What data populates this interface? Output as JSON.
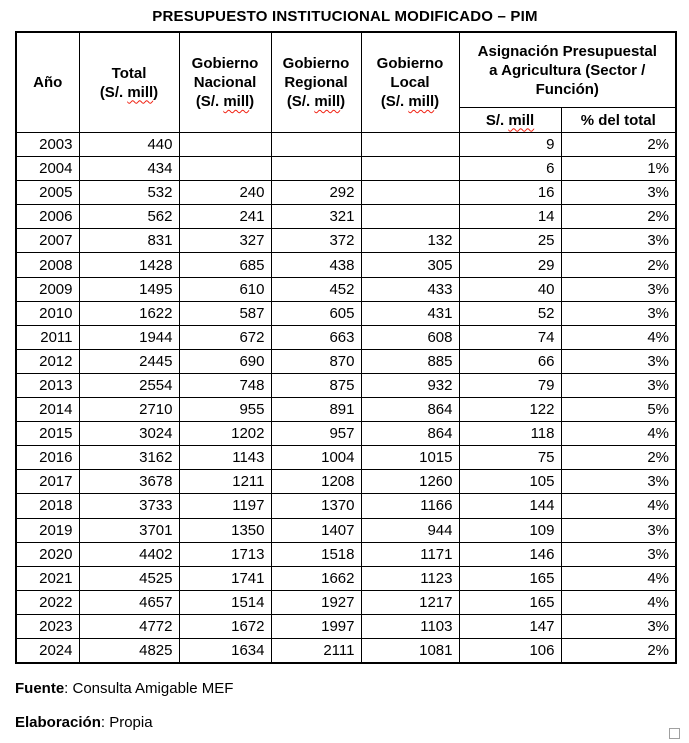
{
  "title": "PRESUPUESTO INSTITUCIONAL MODIFICADO – PIM",
  "colors": {
    "text": "#000000",
    "border": "#000000",
    "background": "#ffffff",
    "spellcheck_underline": "#f02011"
  },
  "table": {
    "headers": {
      "ano": "Año",
      "total_name": "Total",
      "total_unit": "(S/. mill)",
      "nacional_name": "Gobierno\nNacional",
      "nacional_unit": "(S/. mill)",
      "regional_name": "Gobierno\nRegional",
      "regional_unit": "(S/. mill)",
      "local_name": "Gobierno\nLocal",
      "local_unit": "(S/. mill)",
      "asignacion": "Asignación Presupuestal\na Agricultura (Sector /\nFunción)",
      "sub_mill": "S/. mill",
      "sub_pct": "% del total"
    },
    "column_keys": [
      "year",
      "total",
      "gobierno_nacional",
      "gobierno_regional",
      "gobierno_local",
      "agricultura_mill",
      "agricultura_pct"
    ],
    "rows": [
      [
        "2003",
        "440",
        "",
        "",
        "",
        "9",
        "2%"
      ],
      [
        "2004",
        "434",
        "",
        "",
        "",
        "6",
        "1%"
      ],
      [
        "2005",
        "532",
        "240",
        "292",
        "",
        "16",
        "3%"
      ],
      [
        "2006",
        "562",
        "241",
        "321",
        "",
        "14",
        "2%"
      ],
      [
        "2007",
        "831",
        "327",
        "372",
        "132",
        "25",
        "3%"
      ],
      [
        "2008",
        "1428",
        "685",
        "438",
        "305",
        "29",
        "2%"
      ],
      [
        "2009",
        "1495",
        "610",
        "452",
        "433",
        "40",
        "3%"
      ],
      [
        "2010",
        "1622",
        "587",
        "605",
        "431",
        "52",
        "3%"
      ],
      [
        "2011",
        "1944",
        "672",
        "663",
        "608",
        "74",
        "4%"
      ],
      [
        "2012",
        "2445",
        "690",
        "870",
        "885",
        "66",
        "3%"
      ],
      [
        "2013",
        "2554",
        "748",
        "875",
        "932",
        "79",
        "3%"
      ],
      [
        "2014",
        "2710",
        "955",
        "891",
        "864",
        "122",
        "5%"
      ],
      [
        "2015",
        "3024",
        "1202",
        "957",
        "864",
        "118",
        "4%"
      ],
      [
        "2016",
        "3162",
        "1143",
        "1004",
        "1015",
        "75",
        "2%"
      ],
      [
        "2017",
        "3678",
        "1211",
        "1208",
        "1260",
        "105",
        "3%"
      ],
      [
        "2018",
        "3733",
        "1197",
        "1370",
        "1166",
        "144",
        "4%"
      ],
      [
        "2019",
        "3701",
        "1350",
        "1407",
        "944",
        "109",
        "3%"
      ],
      [
        "2020",
        "4402",
        "1713",
        "1518",
        "1171",
        "146",
        "3%"
      ],
      [
        "2021",
        "4525",
        "1741",
        "1662",
        "1123",
        "165",
        "4%"
      ],
      [
        "2022",
        "4657",
        "1514",
        "1927",
        "1217",
        "165",
        "4%"
      ],
      [
        "2023",
        "4772",
        "1672",
        "1997",
        "1103",
        "147",
        "3%"
      ],
      [
        "2024",
        "4825",
        "1634",
        "2111",
        "1081",
        "106",
        "2%"
      ]
    ]
  },
  "footer": {
    "fuente_label": "Fuente",
    "fuente_text": ": Consulta Amigable MEF",
    "elaboracion_label": "Elaboración",
    "elaboracion_text": ": Propia"
  }
}
